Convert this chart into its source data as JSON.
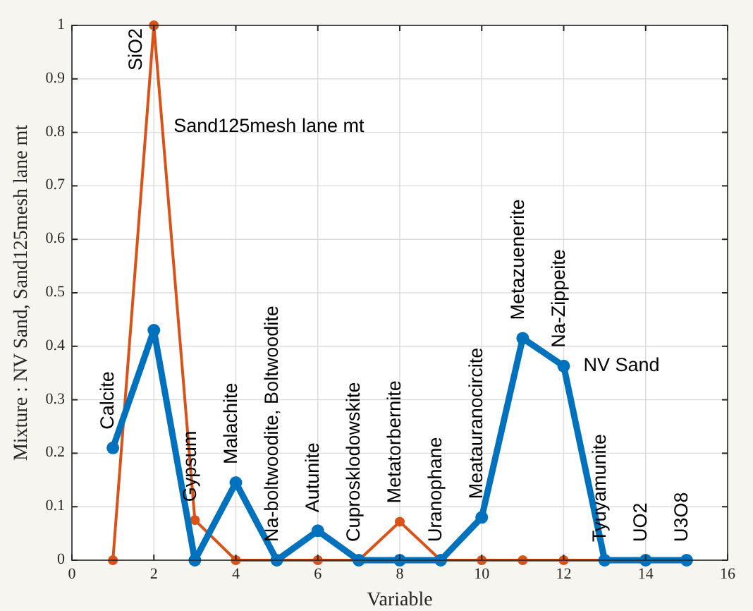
{
  "chart_data": {
    "type": "line",
    "xlabel": "Variable",
    "ylabel": "Mixture : NV Sand, Sand125mesh lane mt",
    "x": [
      1,
      2,
      3,
      4,
      5,
      6,
      7,
      8,
      9,
      10,
      11,
      12,
      13,
      14,
      15
    ],
    "series": [
      {
        "name": "Sand125mesh lane mt",
        "color": "#d95319",
        "values": [
          0,
          1,
          0.075,
          0,
          0,
          0,
          0,
          0.072,
          0,
          0,
          0,
          0,
          0,
          0,
          0
        ]
      },
      {
        "name": "NV Sand",
        "color": "#0072bd",
        "values": [
          0.21,
          0.43,
          0,
          0.145,
          0,
          0.055,
          0,
          0,
          0,
          0.08,
          0.415,
          0.363,
          0,
          0,
          0
        ]
      }
    ],
    "xlim": [
      0,
      16
    ],
    "xticks": [
      0,
      2,
      4,
      6,
      8,
      10,
      12,
      14,
      16
    ],
    "ylim": [
      0,
      1
    ],
    "yticks": [
      0,
      0.1,
      0.2,
      0.3,
      0.4,
      0.5,
      0.6,
      0.7,
      0.8,
      0.9,
      1
    ],
    "grid": true,
    "marker": "circle",
    "line_style": "solid",
    "annotations": [
      {
        "text": "Calcite",
        "x": 1,
        "y": 0.21
      },
      {
        "text": "SiO2",
        "x": 2,
        "y": 1
      },
      {
        "text": "Gypsum",
        "x": 3,
        "y": 0.075
      },
      {
        "text": "Malachite",
        "x": 4,
        "y": 0.145
      },
      {
        "text": "Na-boltwoodite, Boltwoodite",
        "x": 5,
        "y": 0
      },
      {
        "text": "Autunite",
        "x": 6,
        "y": 0.055
      },
      {
        "text": "Cuprosklodowskite",
        "x": 7,
        "y": 0
      },
      {
        "text": "Metatorbernite",
        "x": 8,
        "y": 0.072
      },
      {
        "text": "Uranophane",
        "x": 9,
        "y": 0
      },
      {
        "text": "Meatauranocircite",
        "x": 10,
        "y": 0.08
      },
      {
        "text": "Metazuenerite",
        "x": 11,
        "y": 0.415
      },
      {
        "text": "Na-Zippeite",
        "x": 12,
        "y": 0.363
      },
      {
        "text": "Tyuyamunite",
        "x": 13,
        "y": 0
      },
      {
        "text": "UO2",
        "x": 14,
        "y": 0
      },
      {
        "text": "U3O8",
        "x": 15,
        "y": 0
      }
    ]
  }
}
